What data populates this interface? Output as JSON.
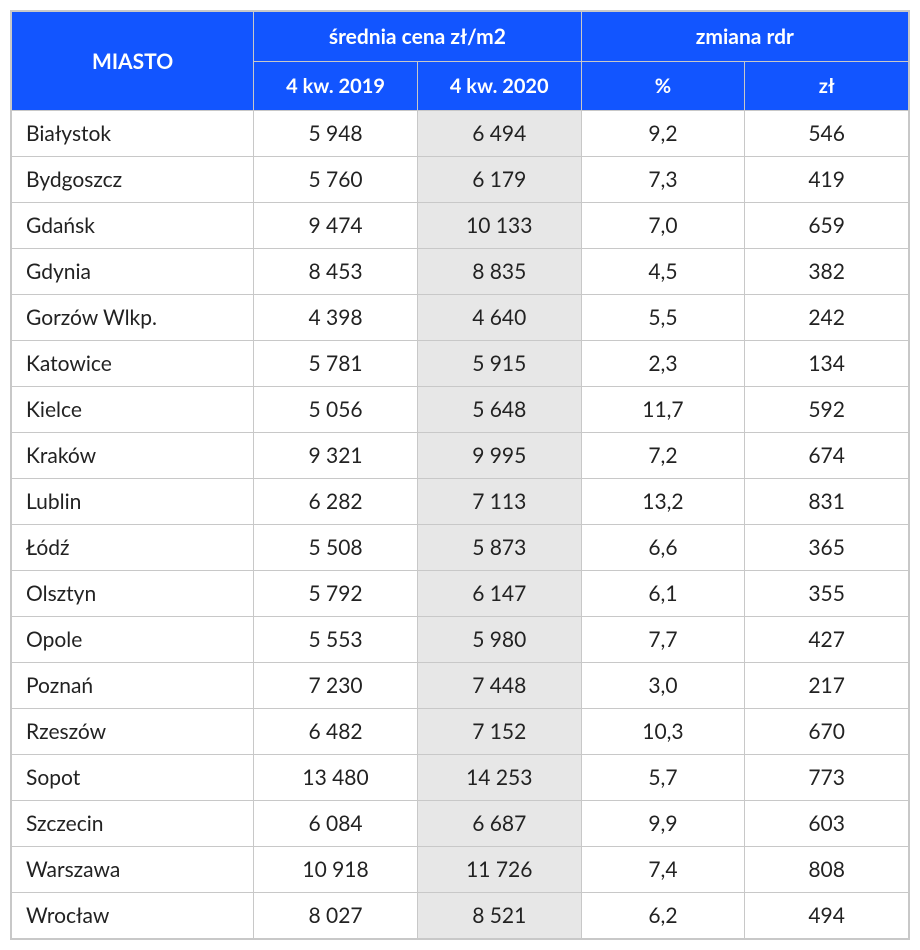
{
  "styling": {
    "header_bg": "#1255ff",
    "header_fg": "#ffffff",
    "header_font_size_top": 21,
    "header_font_size_sub": 20,
    "highlight_column_bg": "#e7e7e7",
    "border_color": "#c8c8c8",
    "row_font_size": 21
  },
  "header": {
    "city": "MIASTO",
    "group1": "średnia cena zł/m2",
    "group2": "zmiana rdr",
    "sub": [
      "4 kw. 2019",
      "4 kw. 2020",
      "%",
      "zł"
    ]
  },
  "rows": [
    {
      "city": "Białystok",
      "q2019": "5 948",
      "q2020": "6 494",
      "pct": "9,2",
      "zl": "546"
    },
    {
      "city": "Bydgoszcz",
      "q2019": "5 760",
      "q2020": "6 179",
      "pct": "7,3",
      "zl": "419"
    },
    {
      "city": "Gdańsk",
      "q2019": "9 474",
      "q2020": "10 133",
      "pct": "7,0",
      "zl": "659"
    },
    {
      "city": "Gdynia",
      "q2019": "8 453",
      "q2020": "8 835",
      "pct": "4,5",
      "zl": "382"
    },
    {
      "city": "Gorzów Wlkp.",
      "q2019": "4 398",
      "q2020": "4 640",
      "pct": "5,5",
      "zl": "242"
    },
    {
      "city": "Katowice",
      "q2019": "5 781",
      "q2020": "5 915",
      "pct": "2,3",
      "zl": "134"
    },
    {
      "city": "Kielce",
      "q2019": "5 056",
      "q2020": "5 648",
      "pct": "11,7",
      "zl": "592"
    },
    {
      "city": "Kraków",
      "q2019": "9 321",
      "q2020": "9 995",
      "pct": "7,2",
      "zl": "674"
    },
    {
      "city": "Lublin",
      "q2019": "6 282",
      "q2020": "7 113",
      "pct": "13,2",
      "zl": "831"
    },
    {
      "city": "Łódź",
      "q2019": "5 508",
      "q2020": "5 873",
      "pct": "6,6",
      "zl": "365"
    },
    {
      "city": "Olsztyn",
      "q2019": "5 792",
      "q2020": "6 147",
      "pct": "6,1",
      "zl": "355"
    },
    {
      "city": "Opole",
      "q2019": "5 553",
      "q2020": "5 980",
      "pct": "7,7",
      "zl": "427"
    },
    {
      "city": "Poznań",
      "q2019": "7 230",
      "q2020": "7 448",
      "pct": "3,0",
      "zl": "217"
    },
    {
      "city": "Rzeszów",
      "q2019": "6 482",
      "q2020": "7 152",
      "pct": "10,3",
      "zl": "670"
    },
    {
      "city": "Sopot",
      "q2019": "13 480",
      "q2020": "14 253",
      "pct": "5,7",
      "zl": "773"
    },
    {
      "city": "Szczecin",
      "q2019": "6 084",
      "q2020": "6 687",
      "pct": "9,9",
      "zl": "603"
    },
    {
      "city": "Warszawa",
      "q2019": "10 918",
      "q2020": "11 726",
      "pct": "7,4",
      "zl": "808"
    },
    {
      "city": "Wrocław",
      "q2019": "8 027",
      "q2020": "8 521",
      "pct": "6,2",
      "zl": "494"
    }
  ]
}
